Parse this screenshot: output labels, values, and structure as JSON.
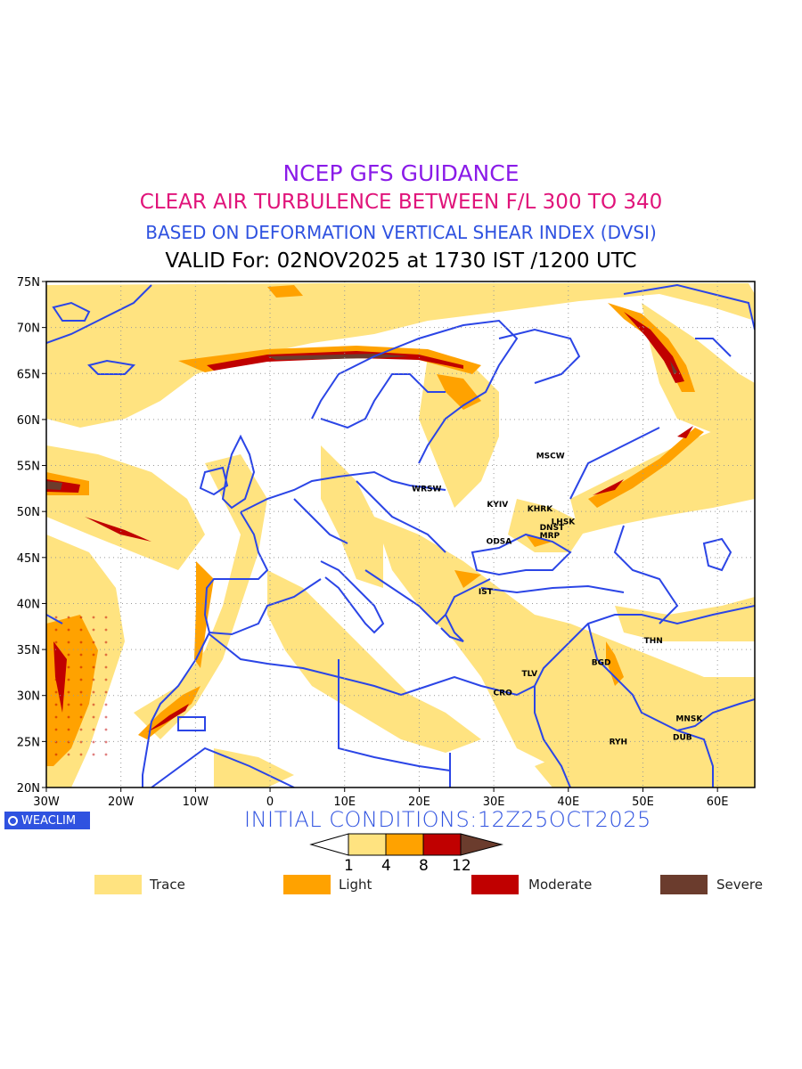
{
  "titles": {
    "line1": "NCEP GFS GUIDANCE",
    "line2": "CLEAR AIR TURBULENCE BETWEEN F/L 300 TO 340",
    "line3": "BASED ON DEFORMATION VERTICAL SHEAR INDEX (DVSI)",
    "line4": "VALID For: 02NOV2025 at 1730 IST /1200 UTC"
  },
  "colors": {
    "line1": "#8a1be8",
    "line2": "#e0147a",
    "line3": "#2f52e0",
    "line4": "#000000",
    "coast": "#2b45e6",
    "trace": "#ffe380",
    "light": "#ffa200",
    "moderate": "#c00000",
    "severe": "#6b3c2d"
  },
  "map": {
    "lat_ticks": [
      "75N",
      "70N",
      "65N",
      "60N",
      "55N",
      "50N",
      "45N",
      "40N",
      "35N",
      "30N",
      "25N",
      "20N"
    ],
    "lon_ticks": [
      "30W",
      "20W",
      "10W",
      "0",
      "10E",
      "20E",
      "30E",
      "40E",
      "50E",
      "60E"
    ],
    "cities": [
      {
        "name": "MSCW",
        "lon": 37.6,
        "lat": 55.8
      },
      {
        "name": "WRSW",
        "lon": 21.0,
        "lat": 52.2
      },
      {
        "name": "KYIV",
        "lon": 30.5,
        "lat": 50.5
      },
      {
        "name": "KHRK",
        "lon": 36.2,
        "lat": 50.0
      },
      {
        "name": "LHSK",
        "lon": 39.3,
        "lat": 48.6
      },
      {
        "name": "DNST",
        "lon": 37.8,
        "lat": 48.0
      },
      {
        "name": "MRP",
        "lon": 37.5,
        "lat": 47.1
      },
      {
        "name": "ODSA",
        "lon": 30.7,
        "lat": 46.5
      },
      {
        "name": "IST",
        "lon": 28.9,
        "lat": 41.0
      },
      {
        "name": "THN",
        "lon": 51.4,
        "lat": 35.7
      },
      {
        "name": "BGD",
        "lon": 44.4,
        "lat": 33.3
      },
      {
        "name": "TLV",
        "lon": 34.8,
        "lat": 32.1
      },
      {
        "name": "CRO",
        "lon": 31.2,
        "lat": 30.0
      },
      {
        "name": "MNSK",
        "lon": 56.2,
        "lat": 27.2
      },
      {
        "name": "DUB",
        "lon": 55.3,
        "lat": 25.2
      },
      {
        "name": "RYH",
        "lon": 46.7,
        "lat": 24.7
      }
    ]
  },
  "initial_conditions": "INITIAL CONDITIONS:12Z25OCT2025",
  "logo_text": "WEACLIM",
  "colorbar": {
    "thresholds": [
      "1",
      "4",
      "8",
      "12"
    ]
  },
  "legend": [
    {
      "label": "Trace",
      "color": "#ffe380"
    },
    {
      "label": "Light",
      "color": "#ffa200"
    },
    {
      "label": "Moderate",
      "color": "#c00000"
    },
    {
      "label": "Severe",
      "color": "#6b3c2d"
    }
  ]
}
